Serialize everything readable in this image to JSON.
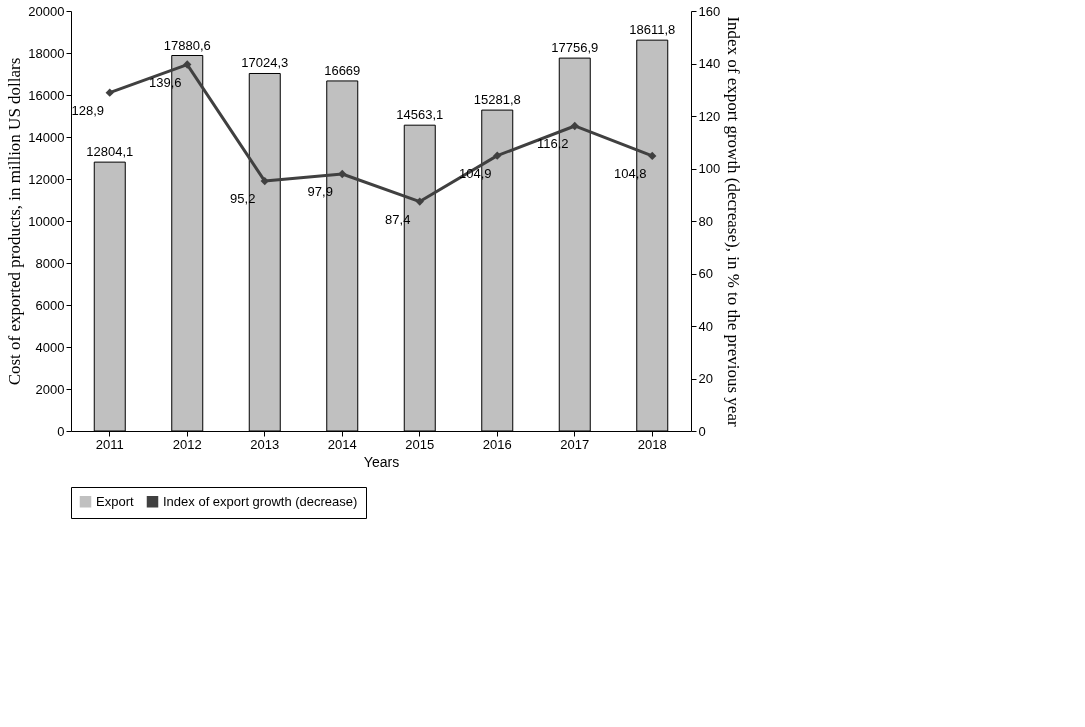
{
  "chart_data": {
    "type": "bar",
    "xlabel": "Years",
    "ylabel": "Cost of exported products, in million US dollars",
    "y2label": "Index of export growth (decrease), in % to the previous year",
    "categories": [
      "2011",
      "2012",
      "2013",
      "2014",
      "2015",
      "2016",
      "2017",
      "2018"
    ],
    "series": [
      {
        "name": "Export",
        "color": "#c0c0c0",
        "values": [
          12804.1,
          17880.6,
          17024.3,
          16669,
          14563.1,
          15281.8,
          17756.9,
          18611.8
        ],
        "value_labels": [
          "12804,1",
          "17880,6",
          "17024,3",
          "16669",
          "14563,1",
          "15281,8",
          "17756,9",
          "18611,8"
        ]
      },
      {
        "name": "Index of export growth (decrease)",
        "type": "line",
        "axis": "y2",
        "color": "#404040",
        "marker": "diamond",
        "values": [
          128.9,
          139.6,
          95.2,
          97.9,
          87.4,
          104.9,
          116.2,
          104.8
        ],
        "value_labels": [
          "128,9",
          "139,6",
          "95,2",
          "97,9",
          "87,4",
          "104,9",
          "116,2",
          "104,8"
        ]
      }
    ],
    "ylim": [
      0,
      20000
    ],
    "yticks": [
      0,
      2000,
      4000,
      6000,
      8000,
      10000,
      12000,
      14000,
      16000,
      18000,
      20000
    ],
    "y2lim": [
      0,
      160
    ],
    "y2ticks": [
      0,
      20,
      40,
      60,
      80,
      100,
      120,
      140,
      160
    ],
    "grid": false,
    "legend": "bottom"
  }
}
